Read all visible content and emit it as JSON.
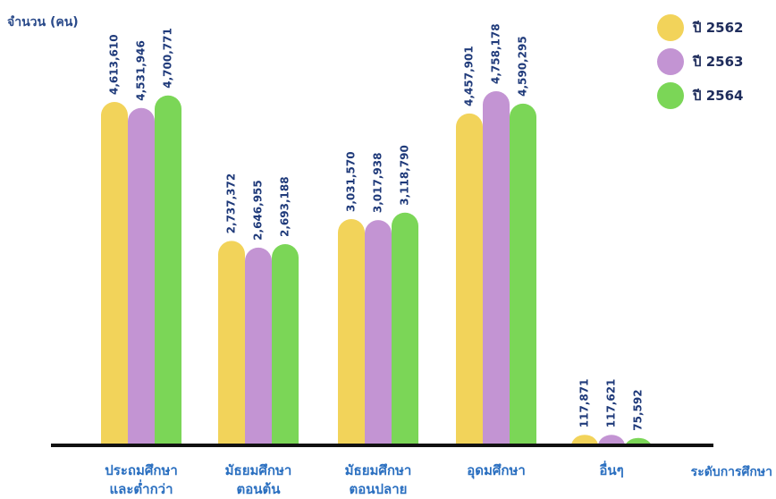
{
  "chart_data": {
    "type": "bar",
    "ylabel": "จำนวน (คน)",
    "xlabel": "ระดับการศึกษา",
    "categories": [
      [
        "ประถมศึกษา",
        "และต่ำกว่า"
      ],
      [
        "มัธยมศึกษา",
        "ตอนต้น"
      ],
      [
        "มัธยมศึกษา",
        "ตอนปลาย"
      ],
      [
        "อุดมศึกษา"
      ],
      [
        "อื่นๆ"
      ]
    ],
    "series": [
      {
        "name": "ปี 2562",
        "color": "#f2d35a",
        "values": [
          4613610,
          2737372,
          3031570,
          4457901,
          117871
        ],
        "labels": [
          "4,613,610",
          "2,737,372",
          "3,031,570",
          "4,457,901",
          "117,871"
        ]
      },
      {
        "name": "ปี 2563",
        "color": "#c394d3",
        "values": [
          4531946,
          2646955,
          3017938,
          4758178,
          117621
        ],
        "labels": [
          "4,531,946",
          "2,646,955",
          "3,017,938",
          "4,758,178",
          "117,621"
        ]
      },
      {
        "name": "ปี 2564",
        "color": "#7bd657",
        "values": [
          4700771,
          2693188,
          3118790,
          4590295,
          75592
        ],
        "labels": [
          "4,700,771",
          "2,693,188",
          "3,118,790",
          "4,590,295",
          "75,592"
        ]
      }
    ],
    "legend_position": "top-right",
    "grid": false,
    "label_color": "#1f3a7a",
    "axis_color": "#111111",
    "category_color": "#2a6fc0"
  }
}
